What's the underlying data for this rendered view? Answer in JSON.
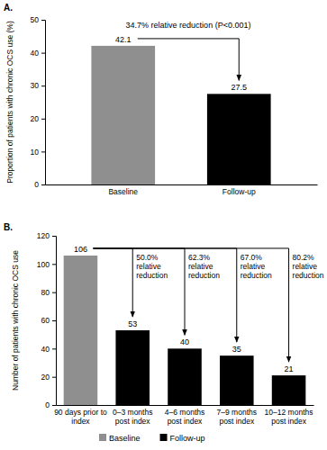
{
  "chart_data": [
    {
      "type": "bar",
      "title": "A.",
      "y_label": "Proportion of patients with chronic OCS use (%)",
      "categories": [
        "Baseline",
        "Follow-up"
      ],
      "values": [
        42.1,
        27.5
      ],
      "colors": [
        "#8f8f8f",
        "#000000"
      ],
      "ylim": [
        0,
        50
      ],
      "yticks": [
        0,
        10,
        20,
        30,
        40,
        50
      ],
      "data_labels": true,
      "annotations": [
        "34.7% relative reduction (P<0.001)"
      ]
    },
    {
      "type": "bar",
      "title": "B.",
      "y_label": "Number of patients with chronic OCS use",
      "categories": [
        "90 days prior to index",
        "0–3 months post index",
        "4–6 months post index",
        "7–9 months post index",
        "10–12 months post index"
      ],
      "series": [
        {
          "name": "Baseline",
          "color": "#8f8f8f",
          "values": [
            106,
            null,
            null,
            null,
            null
          ]
        },
        {
          "name": "Follow-up",
          "color": "#000000",
          "values": [
            null,
            53,
            40,
            35,
            21
          ]
        }
      ],
      "ylim": [
        0,
        120
      ],
      "yticks": [
        0,
        20,
        40,
        60,
        80,
        100,
        120
      ],
      "data_labels": true,
      "legend": "bottom",
      "annotations": [
        "50.0% relative reduction",
        "62.3% relative reduction",
        "67.0% relative reduction",
        "80.2% relative reduction"
      ]
    }
  ]
}
